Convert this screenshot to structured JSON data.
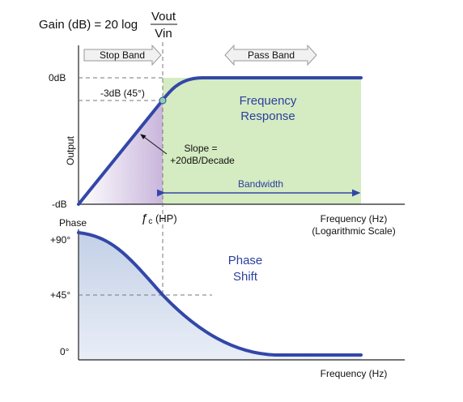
{
  "formula": {
    "lhs": "Gain (dB) = 20 log",
    "numerator": "Vout",
    "denominator": "Vin"
  },
  "top_plot": {
    "bands": {
      "stop": "Stop Band",
      "pass": "Pass Band"
    },
    "y_labels": {
      "top": "0dB",
      "bottom": "-dB",
      "axis": "Output"
    },
    "corner_label": "-3dB (45°)",
    "slope_label": [
      "Slope =",
      "+20dB/Decade"
    ],
    "response_label": [
      "Frequency",
      "Response"
    ],
    "bandwidth_label": "Bandwidth",
    "fc_symbol": "ƒ",
    "fc_sub": "c",
    "fc_suffix": " (HP)",
    "x_label": [
      "Frequency (Hz)",
      "(Logarithmic Scale)"
    ]
  },
  "bottom_plot": {
    "y_title": "Phase",
    "y_ticks": [
      "+90°",
      "+45°",
      "0°"
    ],
    "shift_label": [
      "Phase",
      "Shift"
    ],
    "x_label": "Frequency (Hz)"
  },
  "colors": {
    "curve": "#3347a8",
    "pass_fill": "#d5ebc1",
    "stop_fill": "#c9b6dc",
    "phase_fill": "#b8c8e2",
    "label_blue": "#2b3f9e",
    "band_arrow_fill": "#f1f1f1"
  }
}
